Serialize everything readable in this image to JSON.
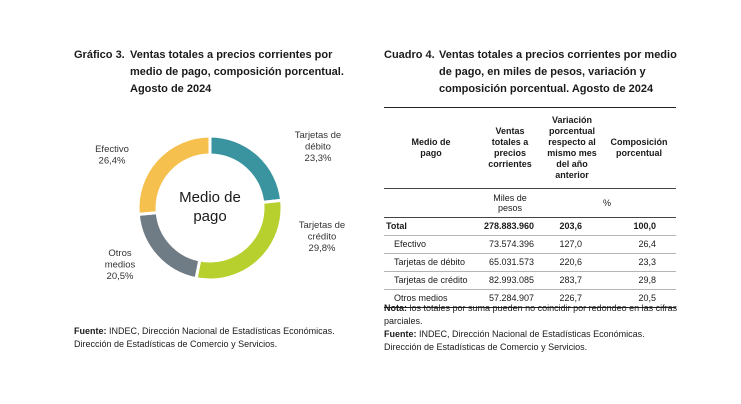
{
  "grafico": {
    "number": "Gráfico 3.",
    "title": "Ventas totales a precios corrientes por medio de pago, composición porcentual. Agosto de 2024",
    "source_label": "Fuente:",
    "source_text": "INDEC, Dirección Nacional de Estadísticas Económicas. Dirección de Estadísticas de Comercio y Servicios."
  },
  "chart_data": {
    "type": "pie",
    "center_label": [
      "Medio de",
      "pago"
    ],
    "slices": [
      {
        "label": [
          "Tarjetas de",
          "débito"
        ],
        "value": 23.3,
        "value_label": "23,3%",
        "color": "#3a94a0"
      },
      {
        "label": [
          "Tarjetas de",
          "crédito"
        ],
        "value": 29.8,
        "value_label": "29,8%",
        "color": "#b7d02e"
      },
      {
        "label": [
          "Otros",
          "medios"
        ],
        "value": 20.5,
        "value_label": "20,5%",
        "color": "#6f7c86"
      },
      {
        "label": [
          "Efectivo"
        ],
        "value": 26.4,
        "value_label": "26,4%",
        "color": "#f6c04e"
      }
    ]
  },
  "cuadro": {
    "number": "Cuadro 4.",
    "title": "Ventas totales a precios corrientes por medio de pago, en miles de pesos, variación y composición porcentual. Agosto de 2024",
    "headers": [
      "Medio de pago",
      "Ventas totales a precios corrientes",
      "Variación porcentual respecto al mismo mes del año anterior",
      "Composición porcentual"
    ],
    "units": [
      "",
      "Miles de pesos",
      "",
      "%"
    ],
    "rows": [
      {
        "label": "Total",
        "ventas": "278.883.960",
        "variacion": "203,6",
        "composicion": "100,0",
        "total": true
      },
      {
        "label": "Efectivo",
        "ventas": "73.574.396",
        "variacion": "127,0",
        "composicion": "26,4"
      },
      {
        "label": "Tarjetas de débito",
        "ventas": "65.031.573",
        "variacion": "220,6",
        "composicion": "23,3"
      },
      {
        "label": "Tarjetas de crédito",
        "ventas": "82.993.085",
        "variacion": "283,7",
        "composicion": "29,8"
      },
      {
        "label": "Otros medios",
        "ventas": "57.284.907",
        "variacion": "226,7",
        "composicion": "20,5"
      }
    ],
    "note_label": "Nota:",
    "note_text": "los totales por suma pueden no coincidir por redondeo en las cifras parciales.",
    "source_label": "Fuente:",
    "source_text": "INDEC, Dirección Nacional de Estadísticas Económicas. Dirección de Estadísticas de Comercio y Servicios."
  }
}
